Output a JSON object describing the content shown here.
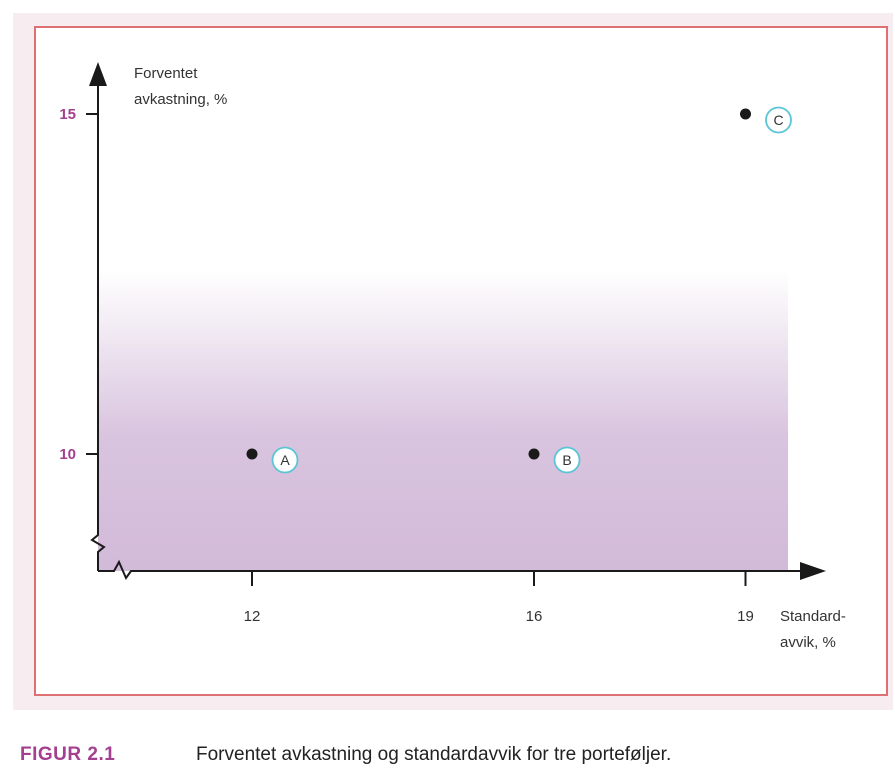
{
  "colors": {
    "panel": "#f7edf0",
    "frame": "#de6f72",
    "band": "#d2bad9",
    "axis": "#1a1a1a",
    "accent": "#a3408f",
    "marker": "#1a1a1a",
    "label_ring": "#5bc5d6"
  },
  "caption": {
    "figure_number": "FIGUR 2.1",
    "text": "Forventet avkastning og standardavvik for tre porteføljer."
  },
  "chart_data": {
    "type": "scatter",
    "xlabel": [
      "Standard-",
      "avvik, %"
    ],
    "ylabel": [
      "Forventet",
      "avkastning, %"
    ],
    "x_ticks": [
      {
        "value": 12,
        "label": "12"
      },
      {
        "value": 16,
        "label": "16"
      },
      {
        "value": 19,
        "label": "19"
      }
    ],
    "y_ticks": [
      {
        "value": 10,
        "label": "10"
      },
      {
        "value": 15,
        "label": "15"
      }
    ],
    "axis_break": true,
    "grid": false,
    "points": [
      {
        "label": "A",
        "x": 12,
        "y": 10
      },
      {
        "label": "B",
        "x": 16,
        "y": 10
      },
      {
        "label": "C",
        "x": 19,
        "y": 15
      }
    ]
  }
}
